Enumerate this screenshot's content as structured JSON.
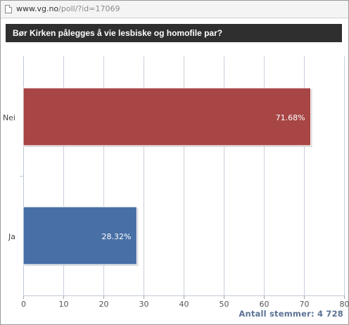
{
  "browser": {
    "url_host": "www.vg.no",
    "url_path": "/poll/?id=17069"
  },
  "poll": {
    "title": "Bør Kirken pålegges å vie lesbiske og homofile par?",
    "total_votes": "Antall stemmer: 4 728"
  },
  "colors": {
    "nei": "#a84545",
    "ja": "#4870a6",
    "grid": "#c8d0dc"
  },
  "chart_data": {
    "type": "bar",
    "orientation": "horizontal",
    "categories": [
      "Nei",
      "Ja"
    ],
    "values": [
      71.68,
      28.32
    ],
    "value_labels": [
      "71.68%",
      "28.32%"
    ],
    "xlim": [
      0,
      80
    ],
    "xticks": [
      "0",
      "10",
      "20",
      "30",
      "40",
      "50",
      "60",
      "70",
      "80"
    ],
    "grid": true
  }
}
